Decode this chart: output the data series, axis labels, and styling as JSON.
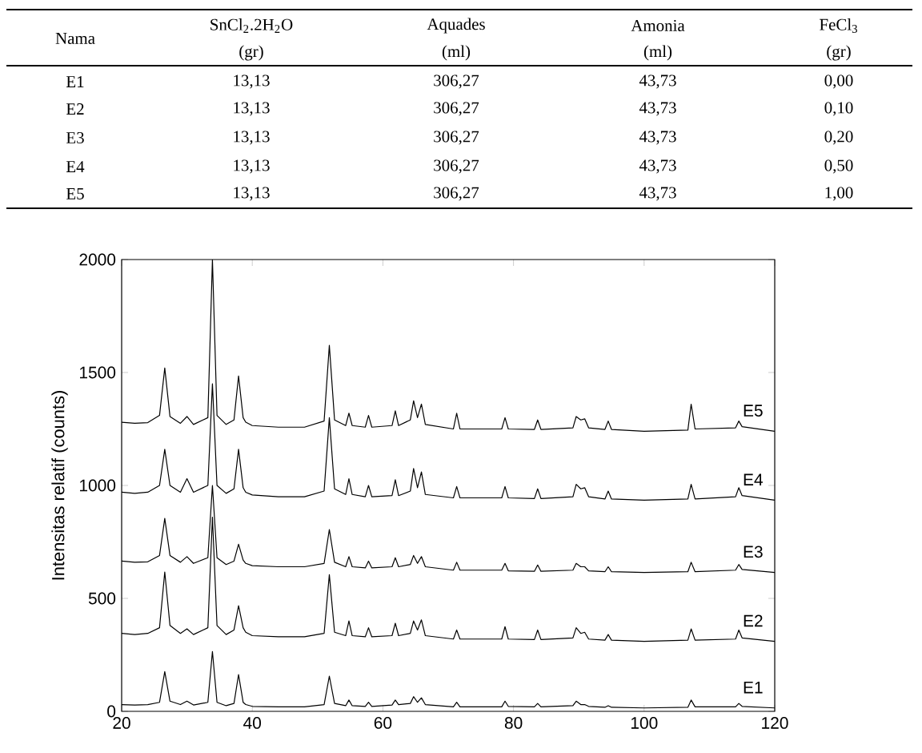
{
  "chart_data": [
    {
      "type": "other",
      "annotations": [
        "Nama",
        "SnCl$_{2}$.2H$_{2}$O",
        "Aquades",
        "Amonia",
        "FeCl$_{3}$",
        "(gr)",
        "(ml)",
        "(ml)",
        "(gr)",
        "E1",
        "13,13",
        "306,27",
        "43,73",
        "0,00",
        "E2",
        "13,13",
        "306,27",
        "43,73",
        "0,10",
        "E3",
        "13,13",
        "306,27",
        "43,73",
        "0,20",
        "E4",
        "13,13",
        "306,27",
        "43,73",
        "0,50",
        "E5",
        "13,13",
        "306,27",
        "43,73",
        "1,00"
      ]
    },
    {
      "type": "line",
      "ylabel": "Intensitas relatif (counts)",
      "xlim": [
        20,
        120
      ],
      "ylim": [
        0,
        2000
      ],
      "xticks": [
        20,
        40,
        60,
        80,
        100,
        120
      ],
      "yticks": [
        0,
        500,
        1000,
        1500,
        2000
      ],
      "x": [
        20,
        22,
        24,
        25.8,
        26.6,
        27.4,
        29,
        30,
        31,
        33.2,
        33.9,
        34.6,
        36,
        37.2,
        37.9,
        38.6,
        39,
        40,
        44,
        48,
        51,
        51.8,
        52.6,
        54.3,
        54.8,
        55.3,
        57.3,
        57.8,
        58.3,
        61.4,
        61.9,
        62.4,
        64.2,
        64.7,
        65.3,
        65.9,
        66.5,
        70.8,
        71.3,
        71.8,
        78.2,
        78.7,
        79.2,
        83.2,
        83.7,
        84.2,
        89.1,
        89.6,
        90.3,
        90.9,
        91.5,
        94,
        94.5,
        95,
        100,
        106.7,
        107.2,
        107.8,
        114,
        114.5,
        115,
        120
      ],
      "series": [
        {
          "name": "E1",
          "color": "#000000",
          "values": [
            30,
            28,
            30,
            40,
            176,
            45,
            30,
            45,
            28,
            40,
            265,
            40,
            25,
            35,
            163,
            40,
            30,
            22,
            20,
            20,
            30,
            156,
            35,
            25,
            50,
            25,
            22,
            40,
            22,
            28,
            50,
            30,
            35,
            65,
            40,
            60,
            30,
            20,
            40,
            20,
            20,
            45,
            22,
            20,
            35,
            20,
            25,
            45,
            30,
            30,
            22,
            18,
            25,
            18,
            15,
            18,
            50,
            20,
            20,
            35,
            22,
            15
          ]
        },
        {
          "name": "E2",
          "color": "#000000",
          "values": [
            345,
            340,
            345,
            370,
            617,
            380,
            345,
            365,
            340,
            370,
            860,
            380,
            340,
            360,
            468,
            370,
            350,
            335,
            330,
            330,
            345,
            605,
            350,
            335,
            400,
            335,
            330,
            370,
            330,
            335,
            390,
            335,
            345,
            400,
            360,
            405,
            335,
            320,
            360,
            320,
            320,
            375,
            320,
            318,
            360,
            318,
            325,
            370,
            345,
            350,
            320,
            315,
            340,
            315,
            310,
            315,
            365,
            315,
            320,
            360,
            325,
            310
          ]
        },
        {
          "name": "E3",
          "color": "#000000",
          "values": [
            665,
            660,
            662,
            690,
            854,
            690,
            660,
            685,
            655,
            680,
            1000,
            680,
            650,
            665,
            740,
            670,
            655,
            645,
            640,
            640,
            655,
            805,
            660,
            640,
            685,
            640,
            635,
            665,
            635,
            640,
            680,
            640,
            650,
            690,
            655,
            685,
            640,
            625,
            660,
            625,
            625,
            655,
            622,
            620,
            648,
            620,
            625,
            655,
            640,
            640,
            622,
            618,
            640,
            618,
            615,
            618,
            660,
            618,
            625,
            650,
            628,
            615
          ]
        },
        {
          "name": "E4",
          "color": "#000000",
          "values": [
            970,
            965,
            970,
            1000,
            1160,
            1000,
            970,
            1030,
            970,
            1000,
            1450,
            1000,
            965,
            985,
            1160,
            990,
            970,
            958,
            950,
            950,
            975,
            1300,
            985,
            960,
            1030,
            960,
            950,
            1000,
            950,
            955,
            1025,
            955,
            975,
            1075,
            990,
            1060,
            960,
            945,
            995,
            945,
            945,
            995,
            945,
            942,
            985,
            942,
            950,
            1005,
            985,
            990,
            950,
            940,
            975,
            940,
            935,
            940,
            1005,
            940,
            950,
            990,
            955,
            935
          ]
        },
        {
          "name": "E5",
          "color": "#000000",
          "values": [
            1280,
            1275,
            1278,
            1310,
            1520,
            1305,
            1275,
            1305,
            1270,
            1300,
            2000,
            1310,
            1270,
            1290,
            1485,
            1300,
            1280,
            1265,
            1258,
            1258,
            1285,
            1620,
            1290,
            1265,
            1320,
            1265,
            1258,
            1310,
            1258,
            1265,
            1330,
            1265,
            1290,
            1375,
            1300,
            1360,
            1270,
            1250,
            1320,
            1250,
            1250,
            1300,
            1250,
            1248,
            1290,
            1248,
            1255,
            1305,
            1290,
            1295,
            1255,
            1248,
            1285,
            1248,
            1240,
            1245,
            1360,
            1250,
            1255,
            1285,
            1260,
            1240
          ]
        }
      ]
    }
  ]
}
